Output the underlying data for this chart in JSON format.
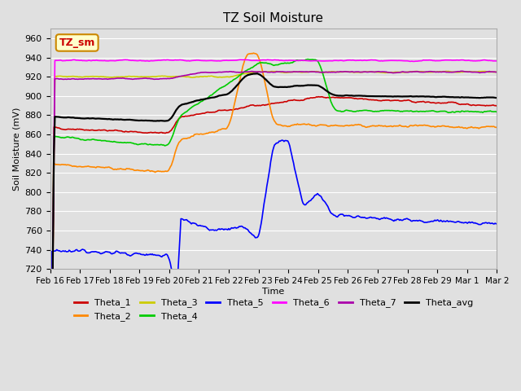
{
  "title": "TZ Soil Moisture",
  "xlabel": "Time",
  "ylabel": "Soil Moisture (mV)",
  "ylim": [
    720,
    970
  ],
  "yticks": [
    720,
    740,
    760,
    780,
    800,
    820,
    840,
    860,
    880,
    900,
    920,
    940,
    960
  ],
  "background_color": "#e0e0e0",
  "plot_bg_color": "#e0e0e0",
  "legend_box_color": "#ffffcc",
  "legend_box_border": "#cc8800",
  "series_colors": {
    "Theta_1": "#cc0000",
    "Theta_2": "#ff8800",
    "Theta_3": "#cccc00",
    "Theta_4": "#00cc00",
    "Theta_5": "#0000ff",
    "Theta_6": "#ff00ff",
    "Theta_7": "#aa00aa",
    "Theta_avg": "#000000"
  },
  "x_labels": [
    "Feb 16",
    "Feb 17",
    "Feb 18",
    "Feb 19",
    "Feb 20",
    "Feb 21",
    "Feb 22",
    "Feb 23",
    "Feb 24",
    "Feb 25",
    "Feb 26",
    "Feb 27",
    "Feb 28",
    "Feb 29",
    "Mar 1",
    "Mar 2"
  ],
  "n_points": 500
}
